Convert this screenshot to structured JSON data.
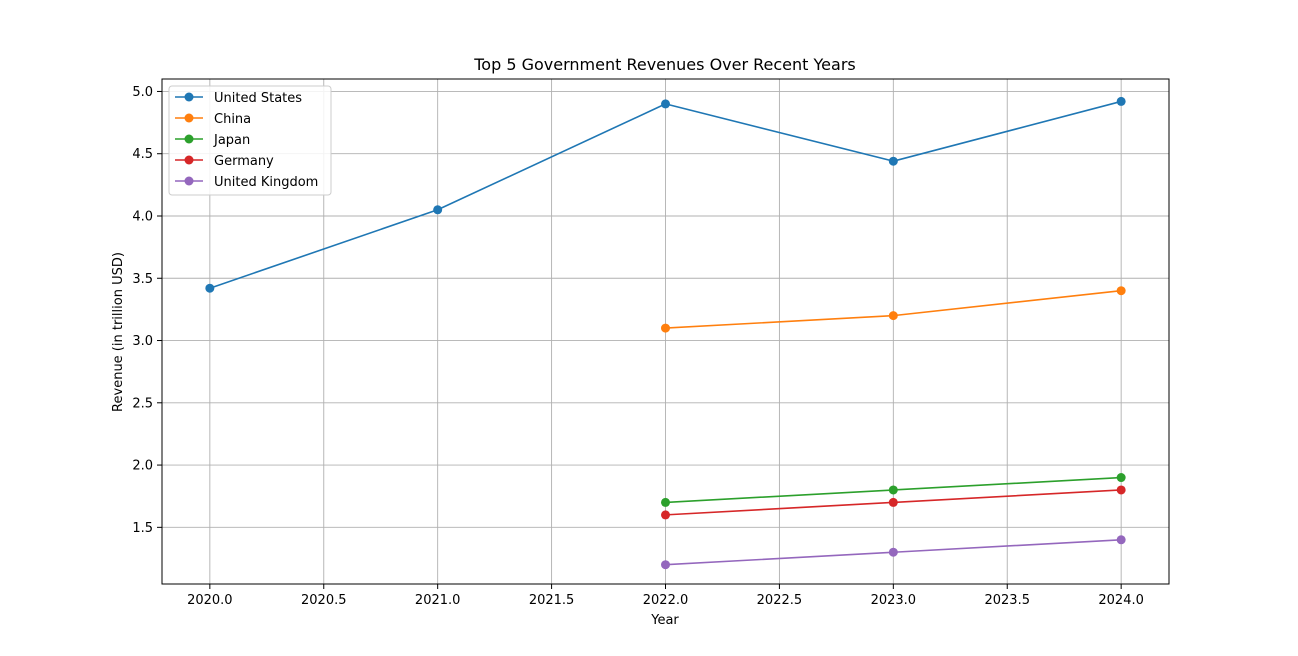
{
  "chart_data": {
    "type": "line",
    "title": "Top 5 Government Revenues Over Recent Years",
    "xlabel": "Year",
    "ylabel": "Revenue (in trillion USD)",
    "xlim": [
      1979.9,
      2024.2
    ],
    "ylim": [
      1.05,
      5.1
    ],
    "xticks": [
      2020.0,
      2020.5,
      2021.0,
      2021.5,
      2022.0,
      2022.5,
      2023.0,
      2023.5,
      2024.0
    ],
    "xtick_labels": [
      "2020.0",
      "2020.5",
      "2021.0",
      "2021.5",
      "2022.0",
      "2022.5",
      "2023.0",
      "2023.5",
      "2024.0"
    ],
    "yticks": [
      1.5,
      2.0,
      2.5,
      3.0,
      3.5,
      4.0,
      4.5,
      5.0
    ],
    "ytick_labels": [
      "1.5",
      "2.0",
      "2.5",
      "3.0",
      "3.5",
      "4.0",
      "4.5",
      "5.0"
    ],
    "grid": true,
    "legend_position": "top-left",
    "series": [
      {
        "name": "United States",
        "color": "#1f77b4",
        "x": [
          2020,
          2021,
          2022,
          2023,
          2024
        ],
        "y": [
          3.42,
          4.05,
          4.9,
          4.44,
          4.92
        ]
      },
      {
        "name": "China",
        "color": "#ff7f0e",
        "x": [
          2022,
          2023,
          2024
        ],
        "y": [
          3.1,
          3.2,
          3.4
        ]
      },
      {
        "name": "Japan",
        "color": "#2ca02c",
        "x": [
          2022,
          2023,
          2024
        ],
        "y": [
          1.7,
          1.8,
          1.9
        ]
      },
      {
        "name": "Germany",
        "color": "#d62728",
        "x": [
          2022,
          2023,
          2024
        ],
        "y": [
          1.6,
          1.7,
          1.8
        ]
      },
      {
        "name": "United Kingdom",
        "color": "#9467bd",
        "x": [
          2022,
          2023,
          2024
        ],
        "y": [
          1.2,
          1.3,
          1.4
        ]
      }
    ]
  }
}
